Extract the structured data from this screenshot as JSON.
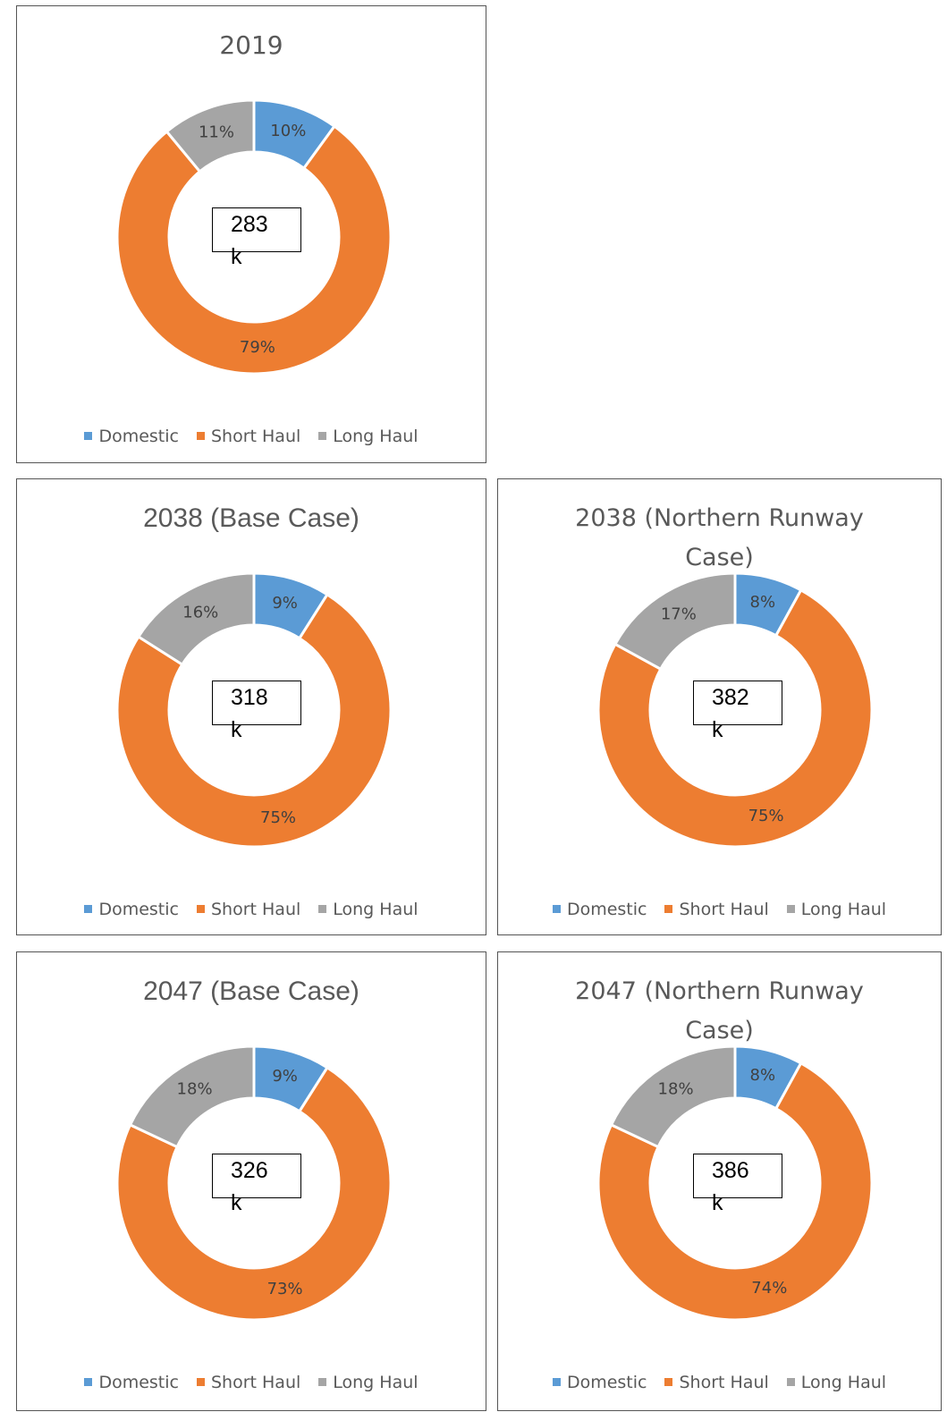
{
  "chart_data": [
    {
      "type": "donut",
      "title": "2019",
      "categories": [
        "Domestic",
        "Short Haul",
        "Long Haul"
      ],
      "values": [
        10,
        79,
        11
      ],
      "value_labels": [
        "10%",
        "79%",
        "11%"
      ],
      "colors": [
        "#5b9bd5",
        "#ed7d31",
        "#a5a5a5"
      ],
      "center_label": "283 k",
      "legend": "bottom"
    },
    {
      "type": "donut",
      "title": "2038 (Base Case)",
      "categories": [
        "Domestic",
        "Short Haul",
        "Long Haul"
      ],
      "values": [
        9,
        75,
        16
      ],
      "value_labels": [
        "9%",
        "75%",
        "16%"
      ],
      "colors": [
        "#5b9bd5",
        "#ed7d31",
        "#a5a5a5"
      ],
      "center_label": "318 k",
      "legend": "bottom"
    },
    {
      "type": "donut",
      "title": "2038 (Northern Runway Case)",
      "categories": [
        "Domestic",
        "Short Haul",
        "Long Haul"
      ],
      "values": [
        8,
        75,
        17
      ],
      "value_labels": [
        "8%",
        "75%",
        "17%"
      ],
      "colors": [
        "#5b9bd5",
        "#ed7d31",
        "#a5a5a5"
      ],
      "center_label": "382 k",
      "legend": "bottom"
    },
    {
      "type": "donut",
      "title": "2047 (Base Case)",
      "categories": [
        "Domestic",
        "Short Haul",
        "Long Haul"
      ],
      "values": [
        9,
        73,
        18
      ],
      "value_labels": [
        "9%",
        "73%",
        "18%"
      ],
      "colors": [
        "#5b9bd5",
        "#ed7d31",
        "#a5a5a5"
      ],
      "center_label": "326 k",
      "legend": "bottom"
    },
    {
      "type": "donut",
      "title": "2047 (Northern Runway Case)",
      "categories": [
        "Domestic",
        "Short Haul",
        "Long Haul"
      ],
      "values": [
        8,
        74,
        18
      ],
      "value_labels": [
        "8%",
        "74%",
        "18%"
      ],
      "colors": [
        "#5b9bd5",
        "#ed7d31",
        "#a5a5a5"
      ],
      "center_label": "386 k",
      "legend": "bottom"
    }
  ]
}
